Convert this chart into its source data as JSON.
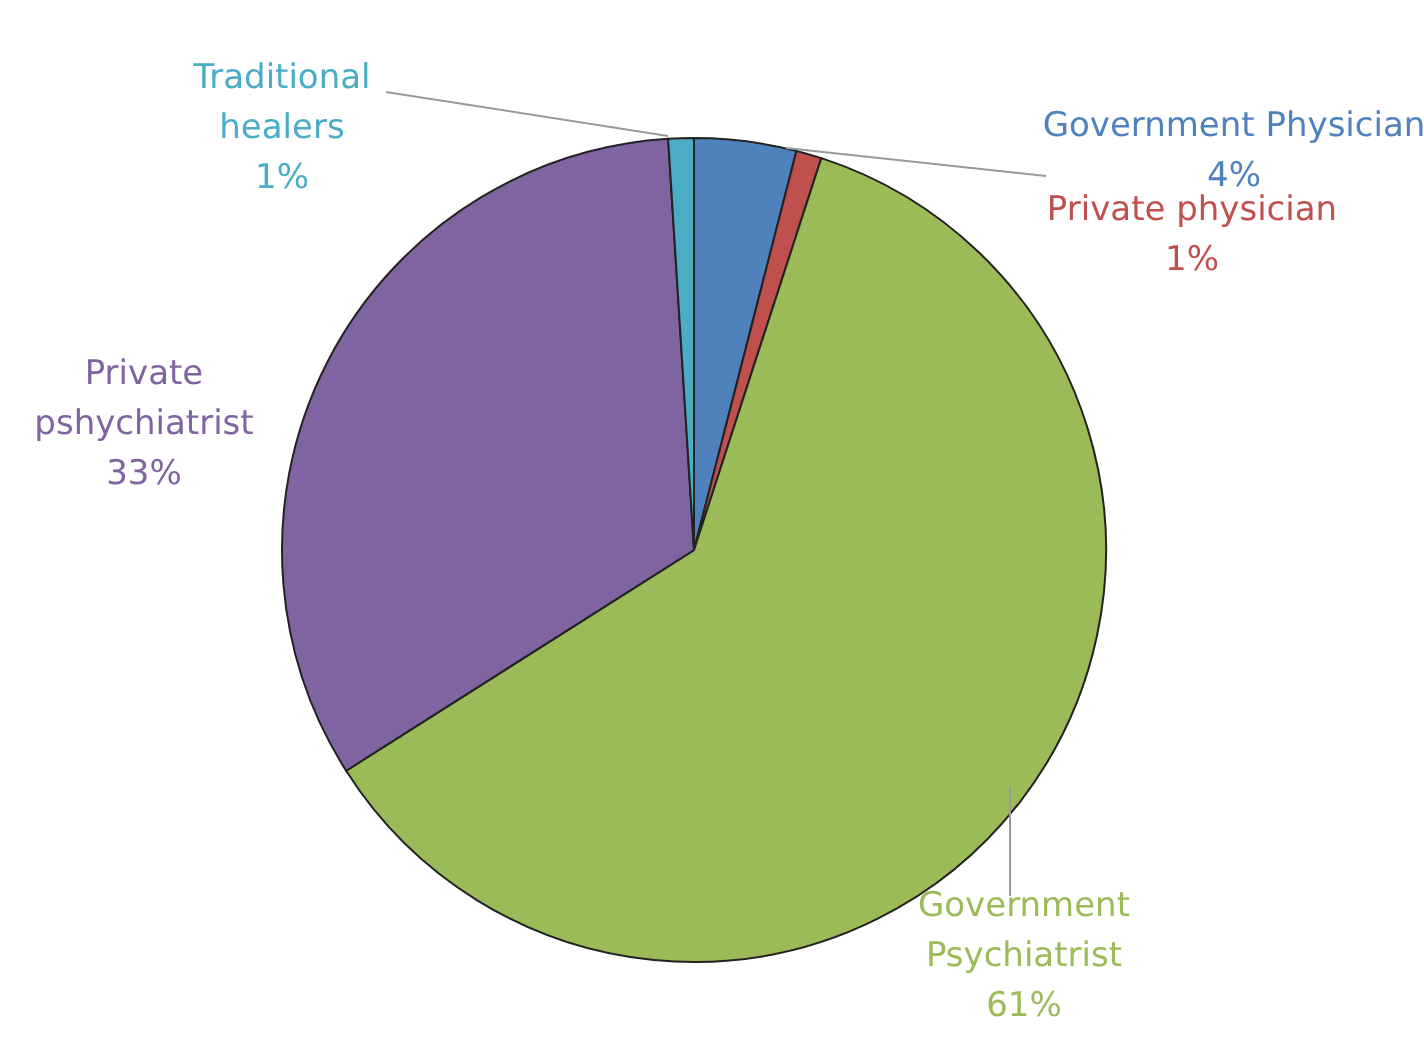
{
  "chart_data": {
    "type": "pie",
    "categories": [
      "Government Physician",
      "Private physician",
      "Government Psychiatrist",
      "Private pshychiatrist",
      "Traditional healers"
    ],
    "values": [
      4,
      1,
      61,
      33,
      1
    ],
    "colors": [
      "#4f81bd",
      "#c0504d",
      "#9bbb59",
      "#8064a2",
      "#4bacc6"
    ],
    "value_labels": [
      "4%",
      "1%",
      "61%",
      "33%",
      "1%"
    ]
  }
}
